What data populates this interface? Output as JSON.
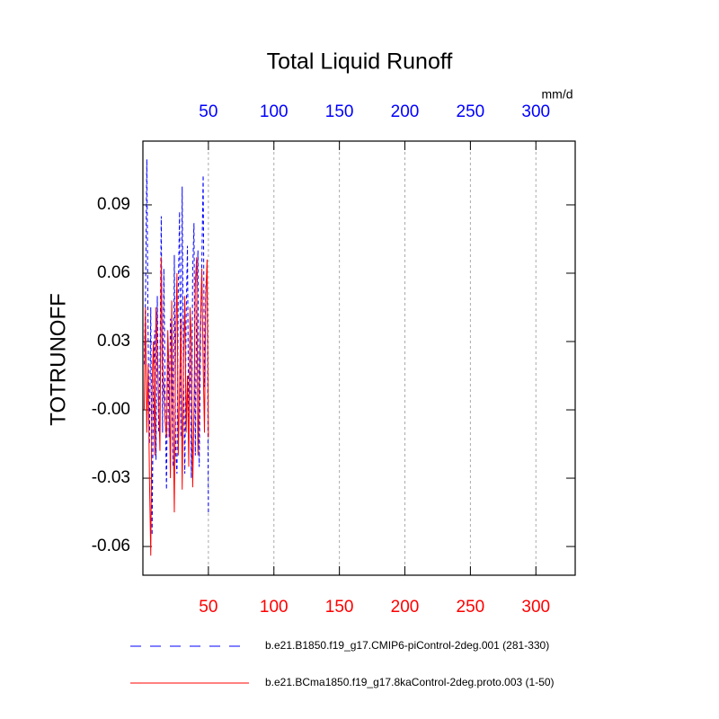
{
  "chart_data": {
    "type": "line",
    "title": "Total Liquid Runoff",
    "y_label": "TOTRUNOFF",
    "x_units": "mm/d",
    "x": [
      1,
      2,
      3,
      4,
      5,
      6,
      7,
      8,
      9,
      10,
      11,
      12,
      13,
      14,
      15,
      16,
      17,
      18,
      19,
      20,
      21,
      22,
      23,
      24,
      25,
      26,
      27,
      28,
      29,
      30,
      31,
      32,
      33,
      34,
      35,
      36,
      37,
      38,
      39,
      40,
      41,
      42,
      43,
      44,
      45,
      46,
      47,
      48,
      49,
      50
    ],
    "series": [
      {
        "name": "b.e21.B1850.f19_g17.CMIP6-piControl-2deg.001 (281-330)",
        "color": "#0000ff",
        "dash": true,
        "values": [
          0.02,
          0.05,
          0.11,
          0.03,
          -0.015,
          0.045,
          -0.055,
          0.01,
          0.035,
          -0.022,
          0.05,
          -0.01,
          0.02,
          0.085,
          -0.01,
          0.062,
          0.005,
          -0.035,
          0.03,
          -0.012,
          0.04,
          0.02,
          -0.025,
          0.068,
          -0.018,
          -0.028,
          0.052,
          0.087,
          -0.012,
          0.098,
          0.015,
          -0.028,
          0.04,
          0.072,
          -0.018,
          0.034,
          -0.03,
          0.061,
          0.082,
          -0.02,
          0.045,
          0.07,
          -0.025,
          0.03,
          0.065,
          0.103,
          0.01,
          0.055,
          0.06,
          -0.045
        ]
      },
      {
        "name": "b.e21.BCma1850.f19_g17.8kaControl-2deg.proto.003 (1-50)",
        "color": "#ff0000",
        "dash": false,
        "values": [
          0.0,
          0.045,
          -0.01,
          0.02,
          -0.03,
          -0.064,
          0.01,
          0.03,
          -0.02,
          0.045,
          0.025,
          0.005,
          -0.018,
          0.067,
          0.02,
          0.01,
          -0.005,
          -0.012,
          0.035,
          0.015,
          -0.03,
          0.048,
          0.0,
          -0.045,
          0.03,
          0.06,
          -0.02,
          0.01,
          0.04,
          -0.035,
          0.02,
          0.05,
          -0.01,
          0.015,
          -0.025,
          0.045,
          0.03,
          -0.034,
          0.0,
          0.055,
          0.067,
          -0.02,
          0.01,
          0.04,
          0.062,
          0.02,
          -0.01,
          0.05,
          0.066,
          -0.012
        ]
      }
    ],
    "xlim": [
      0,
      330
    ],
    "xticks": [
      50,
      100,
      150,
      200,
      250,
      300
    ],
    "ylim": [
      -0.0726,
      0.118
    ],
    "yticks": [
      -0.06,
      -0.03,
      {
        "value": 0,
        "label": "-0.00"
      },
      0.03,
      0.06,
      0.09
    ],
    "x_grid": true,
    "top_tick_color": "#0000ff",
    "bottom_tick_color": "#ff0000"
  }
}
